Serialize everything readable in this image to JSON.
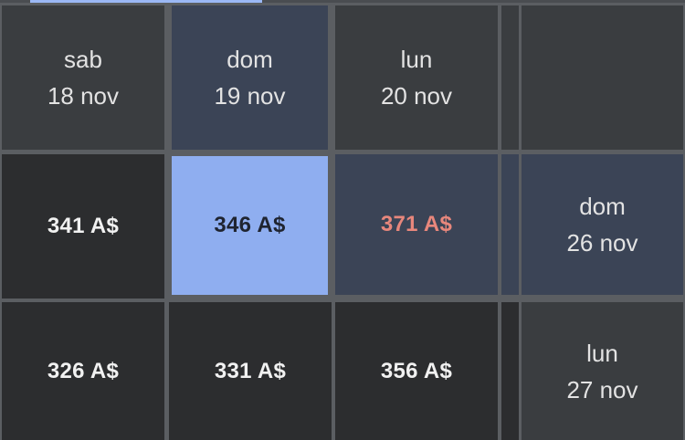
{
  "header_row": [
    {
      "day": "sab",
      "date": "18 nov"
    },
    {
      "day": "dom",
      "date": "19 nov"
    },
    {
      "day": "lun",
      "date": "20 nov"
    }
  ],
  "row2": {
    "prices": [
      "341 A$",
      "346 A$",
      "371 A$"
    ],
    "side": {
      "day": "dom",
      "date": "26 nov"
    }
  },
  "row3": {
    "prices": [
      "326 A$",
      "331 A$",
      "356 A$"
    ],
    "side": {
      "day": "lun",
      "date": "27 nov"
    }
  },
  "colors": {
    "selected_cell": "#8faef0",
    "highlight_price": "#e8877c",
    "header_bg": "#3a3d40",
    "selected_header_bg": "#3b4456"
  }
}
